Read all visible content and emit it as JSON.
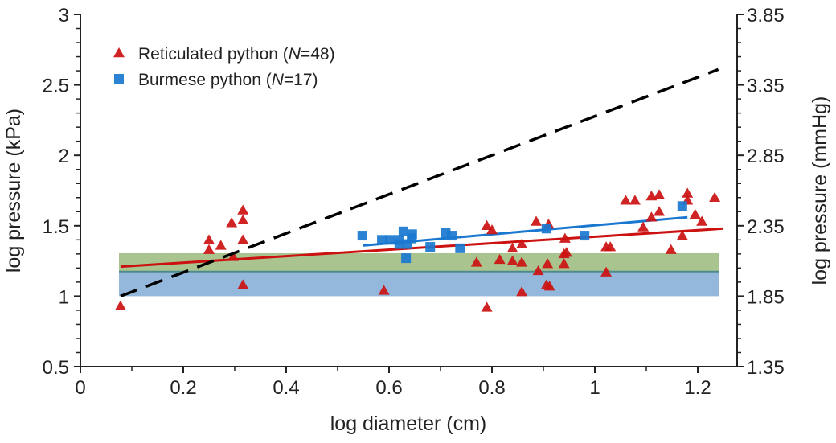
{
  "chart_data": {
    "type": "scatter",
    "xlabel": "log diameter (cm)",
    "ylabel": "log pressure (kPa)",
    "ylabel_right": "log pressure (mmHg)",
    "xlim": [
      0,
      1.28
    ],
    "ylim": [
      0.5,
      3
    ],
    "xticks": [
      "0",
      "0.2",
      "0.4",
      "0.6",
      "0.8",
      "1",
      "1.2"
    ],
    "yticks": [
      "0.5",
      "1",
      "1.5",
      "2",
      "2.5",
      "3"
    ],
    "yticks_right": [
      "1.35",
      "1.85",
      "2.35",
      "2.85",
      "3.35",
      "3.85"
    ],
    "legend_placement": "top-left",
    "legend": [
      {
        "label": "Reticulated python (",
        "italic": "N",
        "suffix": "=48)",
        "marker": "triangle",
        "color": "#cc1111"
      },
      {
        "label": "Burmese python (",
        "italic": "N",
        "suffix": "=17)",
        "marker": "square",
        "color": "#1a78d0"
      }
    ],
    "series": [
      {
        "name": "Reticulated python",
        "marker": "triangle",
        "color": "#cc1111",
        "points": [
          [
            0.078,
            0.93
          ],
          [
            0.25,
            1.4
          ],
          [
            0.25,
            1.33
          ],
          [
            0.273,
            1.36
          ],
          [
            0.294,
            1.52
          ],
          [
            0.316,
            1.61
          ],
          [
            0.316,
            1.54
          ],
          [
            0.316,
            1.4
          ],
          [
            0.297,
            1.28
          ],
          [
            0.316,
            1.08
          ],
          [
            0.59,
            1.04
          ],
          [
            0.79,
            1.5
          ],
          [
            0.8,
            1.47
          ],
          [
            0.79,
            0.92
          ],
          [
            0.77,
            1.24
          ],
          [
            0.815,
            1.26
          ],
          [
            0.84,
            1.34
          ],
          [
            0.858,
            1.37
          ],
          [
            0.858,
            1.24
          ],
          [
            0.886,
            1.53
          ],
          [
            0.91,
            1.51
          ],
          [
            0.89,
            1.18
          ],
          [
            0.908,
            1.23
          ],
          [
            0.858,
            1.03
          ],
          [
            0.906,
            1.08
          ],
          [
            0.912,
            1.07
          ],
          [
            0.94,
            1.23
          ],
          [
            0.942,
            1.41
          ],
          [
            0.945,
            1.31
          ],
          [
            1.022,
            1.35
          ],
          [
            1.03,
            1.35
          ],
          [
            1.022,
            1.17
          ],
          [
            1.06,
            1.68
          ],
          [
            1.078,
            1.68
          ],
          [
            1.11,
            1.71
          ],
          [
            1.125,
            1.72
          ],
          [
            1.094,
            1.49
          ],
          [
            1.125,
            1.6
          ],
          [
            1.11,
            1.56
          ],
          [
            1.148,
            1.33
          ],
          [
            1.17,
            1.43
          ],
          [
            1.18,
            1.73
          ],
          [
            1.18,
            1.68
          ],
          [
            1.195,
            1.58
          ],
          [
            1.208,
            1.53
          ],
          [
            1.233,
            1.7
          ],
          [
            0.94,
            1.3
          ],
          [
            0.84,
            1.25
          ]
        ]
      },
      {
        "name": "Burmese python",
        "marker": "square",
        "color": "#1a78d0",
        "points": [
          [
            0.548,
            1.43
          ],
          [
            0.586,
            1.4
          ],
          [
            0.602,
            1.4
          ],
          [
            0.62,
            1.37
          ],
          [
            0.628,
            1.46
          ],
          [
            0.636,
            1.37
          ],
          [
            0.644,
            1.41
          ],
          [
            0.645,
            1.44
          ],
          [
            0.633,
            1.27
          ],
          [
            0.68,
            1.35
          ],
          [
            0.71,
            1.45
          ],
          [
            0.722,
            1.43
          ],
          [
            0.738,
            1.34
          ],
          [
            0.906,
            1.48
          ],
          [
            0.98,
            1.43
          ],
          [
            1.17,
            1.64
          ],
          [
            0.62,
            1.4
          ]
        ]
      }
    ],
    "fit_lines": [
      {
        "series": "Reticulated python",
        "color": "#cc1111",
        "from": [
          0.078,
          1.21
        ],
        "to": [
          1.25,
          1.48
        ]
      },
      {
        "series": "Burmese python",
        "color": "#1a78d0",
        "from": [
          0.55,
          1.36
        ],
        "to": [
          1.18,
          1.56
        ]
      },
      {
        "style": "dashed",
        "color": "#000000",
        "from": [
          0.078,
          1.0
        ],
        "to": [
          1.24,
          2.61
        ]
      }
    ],
    "bands": [
      {
        "y": [
          1.175,
          1.305
        ],
        "x": [
          0.075,
          1.242
        ],
        "color": "#a9c48f"
      },
      {
        "y": [
          1.0,
          1.175
        ],
        "x": [
          0.075,
          1.242
        ],
        "color": "#93b8dc"
      }
    ],
    "band_divider_color": "#4f8a8b",
    "grid": false
  }
}
